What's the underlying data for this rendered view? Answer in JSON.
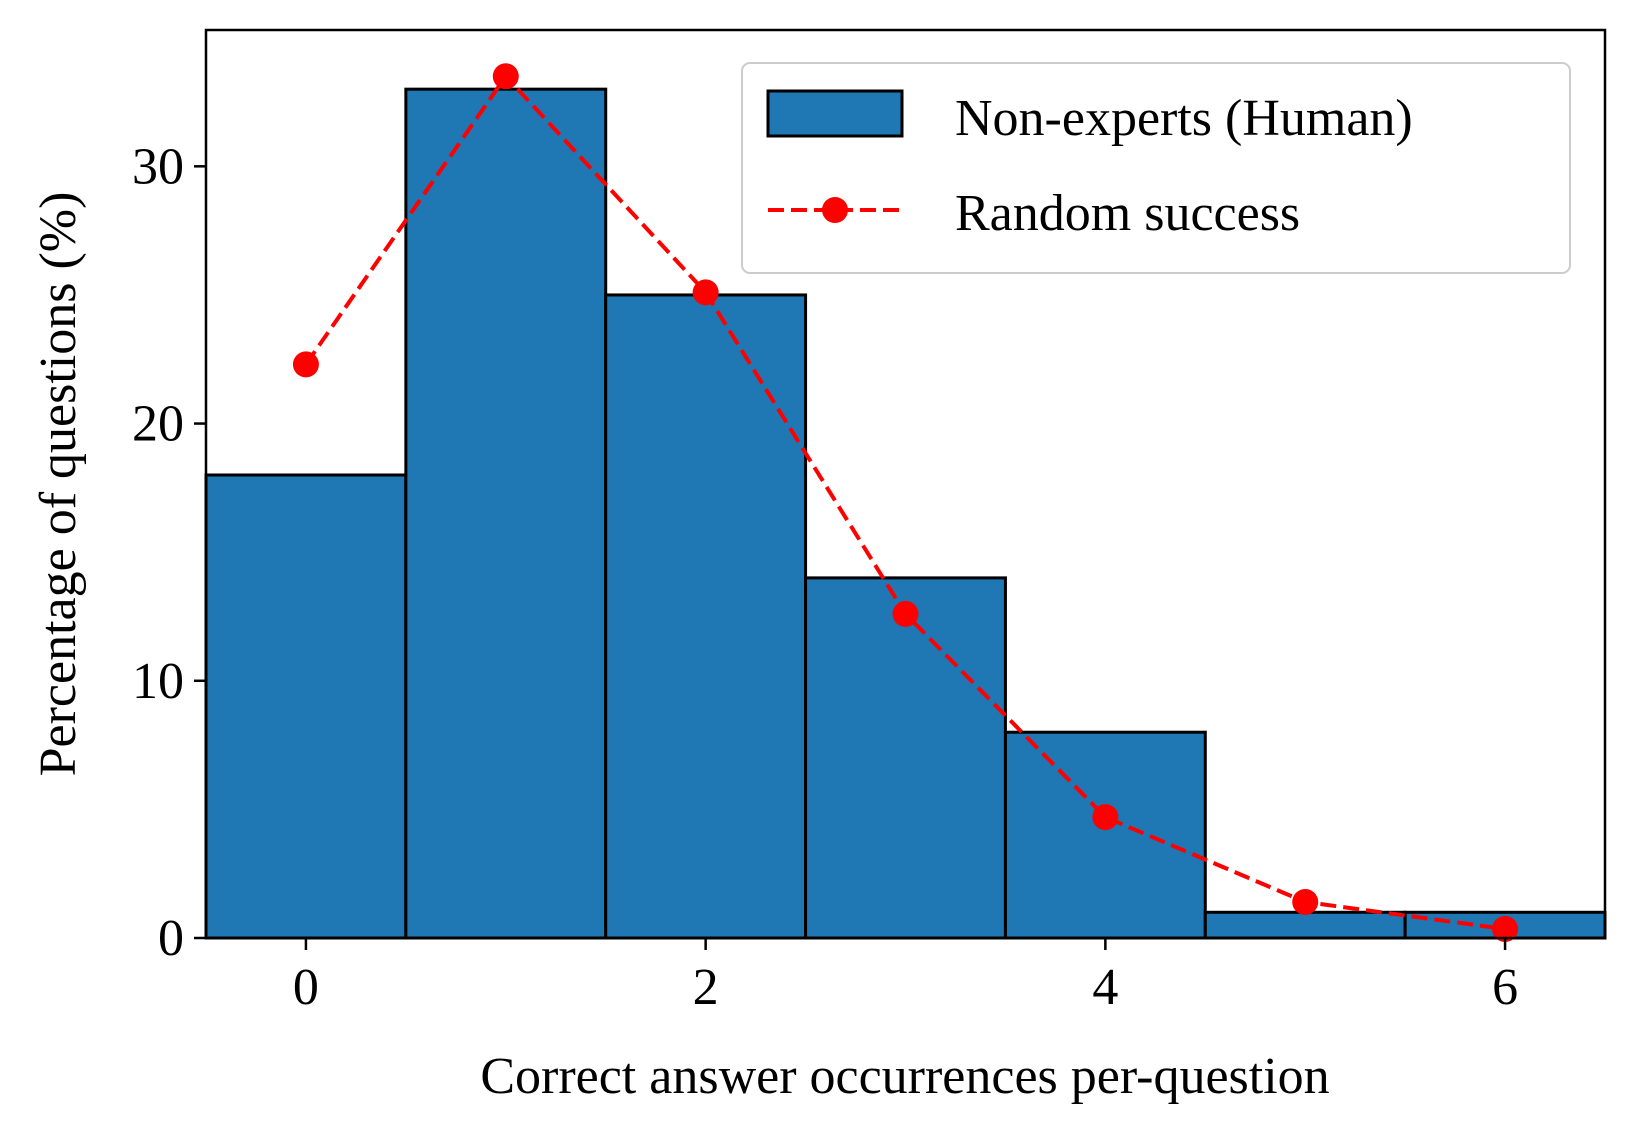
{
  "chart_data": {
    "type": "bar",
    "xlabel": "Correct answer occurrences per-question",
    "ylabel": "Percentage of questions (%)",
    "xlim": [
      -0.5,
      6.5
    ],
    "ylim": [
      0,
      35.3
    ],
    "xticks": [
      0,
      2,
      4,
      6
    ],
    "yticks": [
      0,
      10,
      20,
      30
    ],
    "grid": false,
    "legend_position": "top-right",
    "series": [
      {
        "name": "Non-experts (Human)",
        "type": "bar",
        "color": "#1f77b4",
        "x": [
          0,
          1,
          2,
          3,
          4,
          5,
          6
        ],
        "values": [
          18,
          33,
          25,
          14,
          8,
          1,
          1
        ]
      },
      {
        "name": "Random success",
        "type": "line",
        "style": "dashed",
        "marker": "circle",
        "color": "#ff0000",
        "x": [
          0,
          1,
          2,
          3,
          4,
          5,
          6
        ],
        "values": [
          22.3,
          33.5,
          25.1,
          12.6,
          4.7,
          1.4,
          0.35
        ]
      }
    ]
  }
}
